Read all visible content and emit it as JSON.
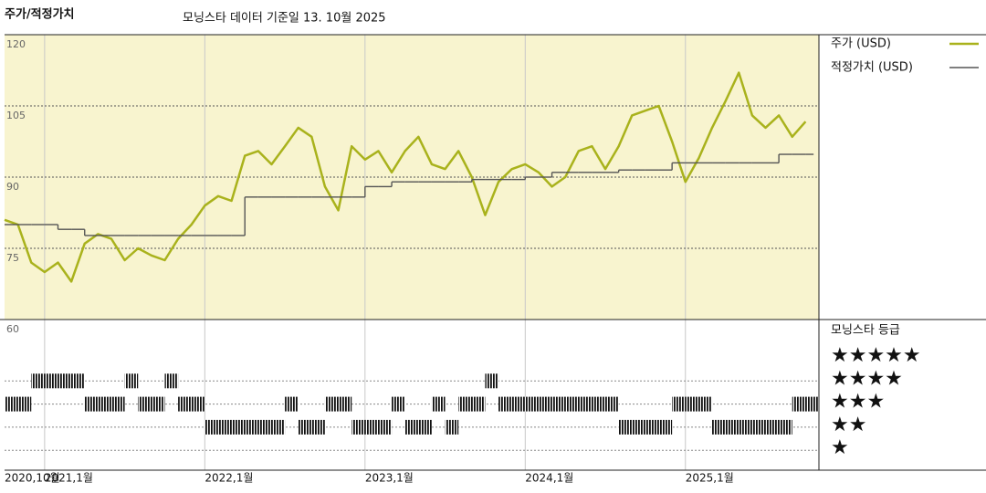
{
  "chart_data": {
    "type": "line",
    "title": "주가/적정가치",
    "subtitle": "모닝스타 데이터 기준일 13. 10월 2025",
    "x": [
      "2020-10",
      "2020-11",
      "2020-12",
      "2021-01",
      "2021-02",
      "2021-03",
      "2021-04",
      "2021-05",
      "2021-06",
      "2021-07",
      "2021-08",
      "2021-09",
      "2021-10",
      "2021-11",
      "2021-12",
      "2022-01",
      "2022-02",
      "2022-03",
      "2022-04",
      "2022-05",
      "2022-06",
      "2022-07",
      "2022-08",
      "2022-09",
      "2022-10",
      "2022-11",
      "2022-12",
      "2023-01",
      "2023-02",
      "2023-03",
      "2023-04",
      "2023-05",
      "2023-06",
      "2023-07",
      "2023-08",
      "2023-09",
      "2023-10",
      "2023-11",
      "2023-12",
      "2024-01",
      "2024-02",
      "2024-03",
      "2024-04",
      "2024-05",
      "2024-06",
      "2024-07",
      "2024-08",
      "2024-09",
      "2024-10",
      "2024-11",
      "2024-12",
      "2025-01",
      "2025-02",
      "2025-03",
      "2025-04",
      "2025-05",
      "2025-06",
      "2025-07",
      "2025-08",
      "2025-09",
      "2025-10"
    ],
    "xlim": [
      "2020-10",
      "2025-11"
    ],
    "xticks": [
      {
        "value": "2020-10",
        "label": "2020,10월"
      },
      {
        "value": "2021-01",
        "label": "2021,1월"
      },
      {
        "value": "2022-01",
        "label": "2022,1월"
      },
      {
        "value": "2023-01",
        "label": "2023,1월"
      },
      {
        "value": "2024-01",
        "label": "2024,1월"
      },
      {
        "value": "2025-01",
        "label": "2025,1월"
      }
    ],
    "ylim": [
      60,
      120
    ],
    "yticks": [
      60,
      75,
      90,
      105,
      120
    ],
    "series": [
      {
        "name": "주가 (USD)",
        "color": "#a9b21c",
        "values": [
          81,
          80,
          72,
          70,
          72,
          68,
          76,
          78,
          77,
          72.5,
          75,
          73.5,
          72.5,
          77,
          80,
          84,
          86,
          85,
          94.5,
          95.5,
          92.7,
          96.5,
          100.4,
          98.5,
          88,
          83,
          96.5,
          93.7,
          95.5,
          91,
          95.5,
          98.5,
          92.7,
          91.7,
          95.5,
          90,
          82,
          89,
          91.7,
          92.7,
          91,
          88,
          90,
          95.5,
          96.5,
          91.7,
          96.5,
          103,
          104,
          105,
          97.5,
          89,
          94,
          100.4,
          106,
          112,
          103,
          100.4,
          103,
          98.5,
          101.7
        ]
      },
      {
        "name": "적정가치 (USD)",
        "color": "#555555",
        "step": true,
        "values": [
          80,
          80,
          80,
          80,
          79,
          79,
          77.7,
          77.7,
          77.7,
          77.7,
          77.7,
          77.7,
          77.7,
          77.7,
          77.7,
          77.7,
          77.7,
          77.7,
          85.8,
          85.8,
          85.8,
          85.8,
          85.8,
          85.8,
          85.8,
          85.8,
          85.8,
          88,
          88,
          89,
          89,
          89,
          89,
          89,
          89,
          89.5,
          89.5,
          89.5,
          89.5,
          90,
          90,
          91,
          91,
          91,
          91,
          91,
          91.5,
          91.5,
          91.5,
          91.5,
          93,
          93,
          93,
          93,
          93,
          93,
          93,
          93,
          94.8,
          94.8,
          94.8
        ]
      }
    ],
    "rating": {
      "title": "모닝스타 등급",
      "labels": [
        "★★★★★",
        "★★★★",
        "★★★",
        "★★",
        "★"
      ],
      "periods": [
        {
          "start": "2020-10",
          "end": "2020-12",
          "stars": 3
        },
        {
          "start": "2020-12",
          "end": "2021-04",
          "stars": 4
        },
        {
          "start": "2021-04",
          "end": "2021-07",
          "stars": 3
        },
        {
          "start": "2021-07",
          "end": "2021-08",
          "stars": 4
        },
        {
          "start": "2021-08",
          "end": "2021-10",
          "stars": 3
        },
        {
          "start": "2021-10",
          "end": "2021-11",
          "stars": 4
        },
        {
          "start": "2021-11",
          "end": "2022-01",
          "stars": 3
        },
        {
          "start": "2022-01",
          "end": "2022-07",
          "stars": 2
        },
        {
          "start": "2022-07",
          "end": "2022-08",
          "stars": 3
        },
        {
          "start": "2022-08",
          "end": "2022-10",
          "stars": 2
        },
        {
          "start": "2022-10",
          "end": "2022-12",
          "stars": 3
        },
        {
          "start": "2022-12",
          "end": "2023-03",
          "stars": 2
        },
        {
          "start": "2023-03",
          "end": "2023-04",
          "stars": 3
        },
        {
          "start": "2023-04",
          "end": "2023-06",
          "stars": 2
        },
        {
          "start": "2023-06",
          "end": "2023-07",
          "stars": 3
        },
        {
          "start": "2023-07",
          "end": "2023-08",
          "stars": 2
        },
        {
          "start": "2023-08",
          "end": "2023-10",
          "stars": 3
        },
        {
          "start": "2023-10",
          "end": "2023-11",
          "stars": 4
        },
        {
          "start": "2023-11",
          "end": "2024-08",
          "stars": 3
        },
        {
          "start": "2024-08",
          "end": "2024-12",
          "stars": 2
        },
        {
          "start": "2024-12",
          "end": "2025-01",
          "stars": 3
        },
        {
          "start": "2025-01",
          "end": "2025-03",
          "stars": 3
        },
        {
          "start": "2025-03",
          "end": "2025-09",
          "stars": 2
        },
        {
          "start": "2025-09",
          "end": "2025-11",
          "stars": 3
        }
      ]
    }
  }
}
